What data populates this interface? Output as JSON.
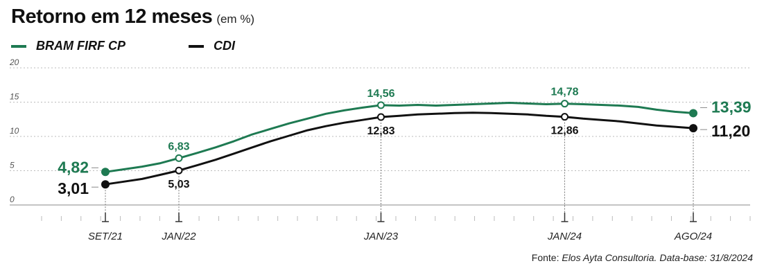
{
  "title": "Retorno em 12 meses",
  "subtitle": "(em %)",
  "legend": [
    {
      "name": "BRAM FIRF CP",
      "color": "#1e7a52"
    },
    {
      "name": "CDI",
      "color": "#111111"
    }
  ],
  "footnote": {
    "lead": "Fonte: ",
    "text": "Elos Ayta Consultoria. Data-base: 31/8/2024"
  },
  "chart_data": {
    "type": "line",
    "ylim": [
      0,
      20
    ],
    "yticks": [
      0,
      5,
      10,
      15,
      20
    ],
    "x_labels": [
      "SET/21",
      "JAN/22",
      "JAN/23",
      "JAN/24",
      "AGO/24"
    ],
    "grid": "horizontal-dotted",
    "series": [
      {
        "name": "BRAM FIRF CP",
        "color": "#1e7a52",
        "values": [
          4.82,
          5.2,
          5.6,
          6.1,
          6.83,
          7.6,
          8.4,
          9.3,
          10.3,
          11.1,
          11.9,
          12.6,
          13.3,
          13.8,
          14.2,
          14.56,
          14.5,
          14.6,
          14.5,
          14.6,
          14.7,
          14.8,
          14.9,
          14.8,
          14.7,
          14.78,
          14.7,
          14.6,
          14.5,
          14.3,
          13.9,
          13.6,
          13.39
        ],
        "labeled": [
          {
            "index": 0,
            "label": "4,82"
          },
          {
            "index": 4,
            "label": "6,83"
          },
          {
            "index": 15,
            "label": "14,56"
          },
          {
            "index": 25,
            "label": "14,78"
          },
          {
            "index": 32,
            "label": "13,39"
          }
        ]
      },
      {
        "name": "CDI",
        "color": "#111111",
        "values": [
          3.01,
          3.4,
          3.8,
          4.4,
          5.03,
          5.8,
          6.6,
          7.5,
          8.4,
          9.3,
          10.1,
          10.9,
          11.5,
          12.0,
          12.4,
          12.83,
          13.0,
          13.2,
          13.3,
          13.4,
          13.45,
          13.4,
          13.3,
          13.2,
          13.0,
          12.86,
          12.6,
          12.4,
          12.2,
          11.9,
          11.6,
          11.4,
          11.2
        ],
        "labeled": [
          {
            "index": 0,
            "label": "3,01"
          },
          {
            "index": 4,
            "label": "5,03"
          },
          {
            "index": 15,
            "label": "12,83"
          },
          {
            "index": 25,
            "label": "12,86"
          },
          {
            "index": 32,
            "label": "11,20"
          }
        ]
      }
    ],
    "x_label_indices": [
      0,
      4,
      15,
      25,
      32
    ]
  }
}
